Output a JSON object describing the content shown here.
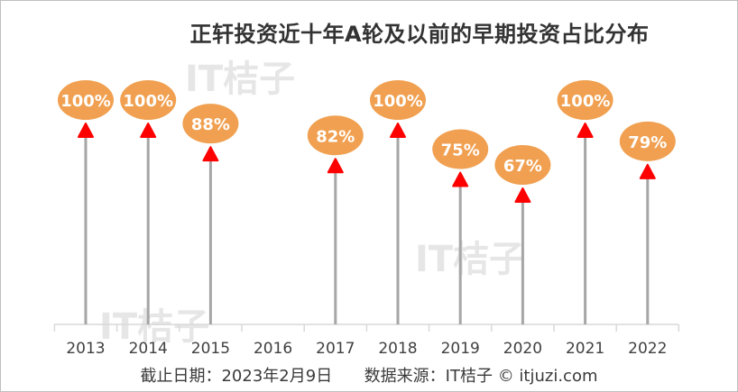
{
  "title": "正轩投资近十年A轮及以前的早期投资占比分布",
  "footer": {
    "cutoff": "截止日期：2023年2月9日",
    "source": "数据来源：IT桔子 © itjuzi.com"
  },
  "watermark": {
    "brand": "IT桔子",
    "url": "ITJUZI.COM"
  },
  "colors": {
    "bubble": "#F0A050",
    "marker": "#FF0000",
    "stem": "#A6A6A6",
    "axis": "#D9D9D9",
    "label_text": "#FFFFFF",
    "tick_text": "#404040"
  },
  "chart_data": {
    "type": "lollipop",
    "categories": [
      "2013",
      "2014",
      "2015",
      "2016",
      "2017",
      "2018",
      "2019",
      "2020",
      "2021",
      "2022"
    ],
    "values": [
      100,
      100,
      88,
      null,
      82,
      100,
      75,
      67,
      100,
      79
    ],
    "labels": [
      "100%",
      "100%",
      "88%",
      "",
      "82%",
      "100%",
      "75%",
      "67%",
      "100%",
      "79%"
    ],
    "ylim": [
      0,
      100
    ],
    "grid": false,
    "legend": "none"
  }
}
